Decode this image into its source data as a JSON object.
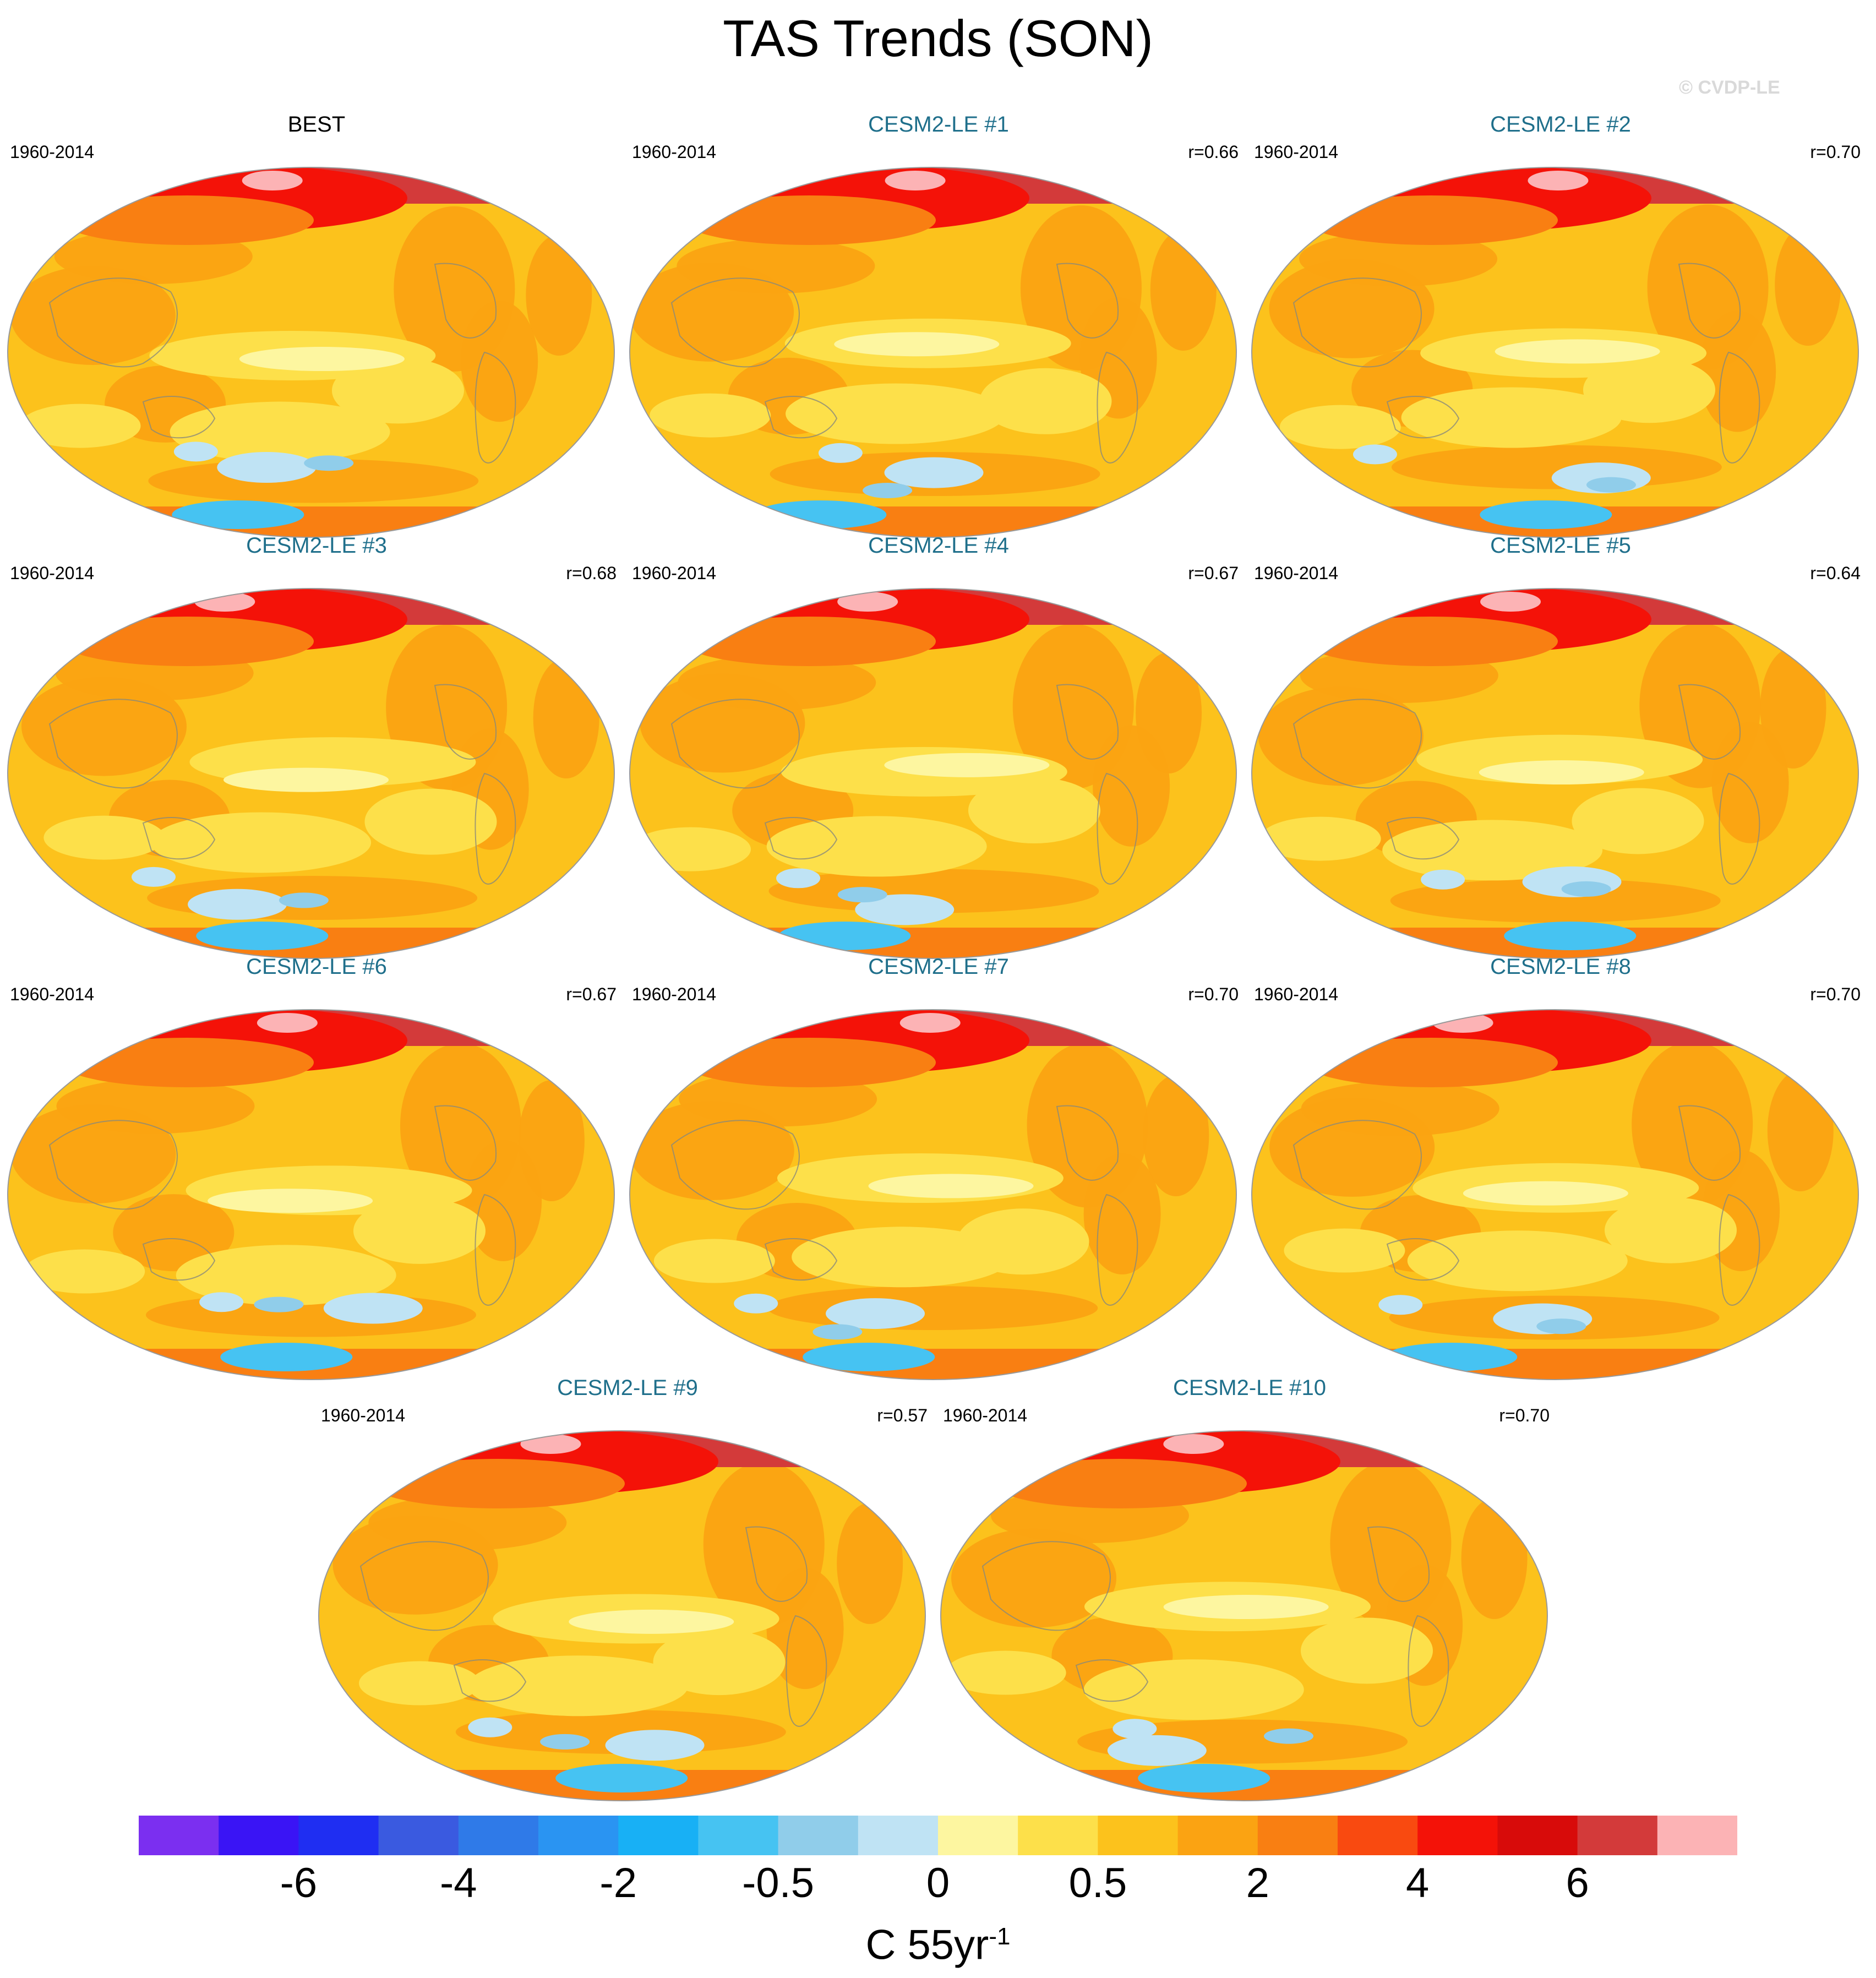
{
  "title": "TAS Trends (SON)",
  "watermark": "© CVDP-LE",
  "panels": [
    {
      "title": "BEST",
      "period": "1960-2014",
      "corr": "",
      "observed": true
    },
    {
      "title": "CESM2-LE #1",
      "period": "1960-2014",
      "corr": "r=0.66"
    },
    {
      "title": "CESM2-LE #2",
      "period": "1960-2014",
      "corr": "r=0.70"
    },
    {
      "title": "CESM2-LE #3",
      "period": "1960-2014",
      "corr": "r=0.68"
    },
    {
      "title": "CESM2-LE #4",
      "period": "1960-2014",
      "corr": "r=0.67"
    },
    {
      "title": "CESM2-LE #5",
      "period": "1960-2014",
      "corr": "r=0.64"
    },
    {
      "title": "CESM2-LE #6",
      "period": "1960-2014",
      "corr": "r=0.67"
    },
    {
      "title": "CESM2-LE #7",
      "period": "1960-2014",
      "corr": "r=0.70"
    },
    {
      "title": "CESM2-LE #8",
      "period": "1960-2014",
      "corr": "r=0.70"
    },
    {
      "title": "CESM2-LE #9",
      "period": "1960-2014",
      "corr": "r=0.57"
    },
    {
      "title": "CESM2-LE #10",
      "period": "1960-2014",
      "corr": "r=0.70"
    }
  ],
  "colorbar": {
    "colors": [
      "#7b2ff0",
      "#3a14f5",
      "#1f2ef2",
      "#3a5ae0",
      "#2f7ae8",
      "#2a94f2",
      "#18b0f5",
      "#46c3f2",
      "#90cdea",
      "#bfe3f4",
      "#fdf6a0",
      "#fde04a",
      "#fcc21c",
      "#fba312",
      "#f97f12",
      "#f94a10",
      "#f41208",
      "#d80b0a",
      "#d33a3a",
      "#fcb3b5"
    ],
    "tick_labels": [
      "-6",
      "-4",
      "-2",
      "-0.5",
      "0",
      "0.5",
      "2",
      "4",
      "6"
    ],
    "units_main": "C 55yr",
    "units_exp": "-1"
  },
  "map_colors": {
    "base": "#fcc21c",
    "warm": "#fba312",
    "warmer": "#f97f12",
    "hot": "#f41208",
    "hotter": "#d33a3a",
    "pink": "#fcb3b5",
    "light": "#fde04a",
    "pale": "#fdf6a0",
    "coolpale": "#bfe3f4",
    "cool": "#90cdea",
    "cold": "#46c3f2",
    "coast": "#8a8a7a"
  }
}
